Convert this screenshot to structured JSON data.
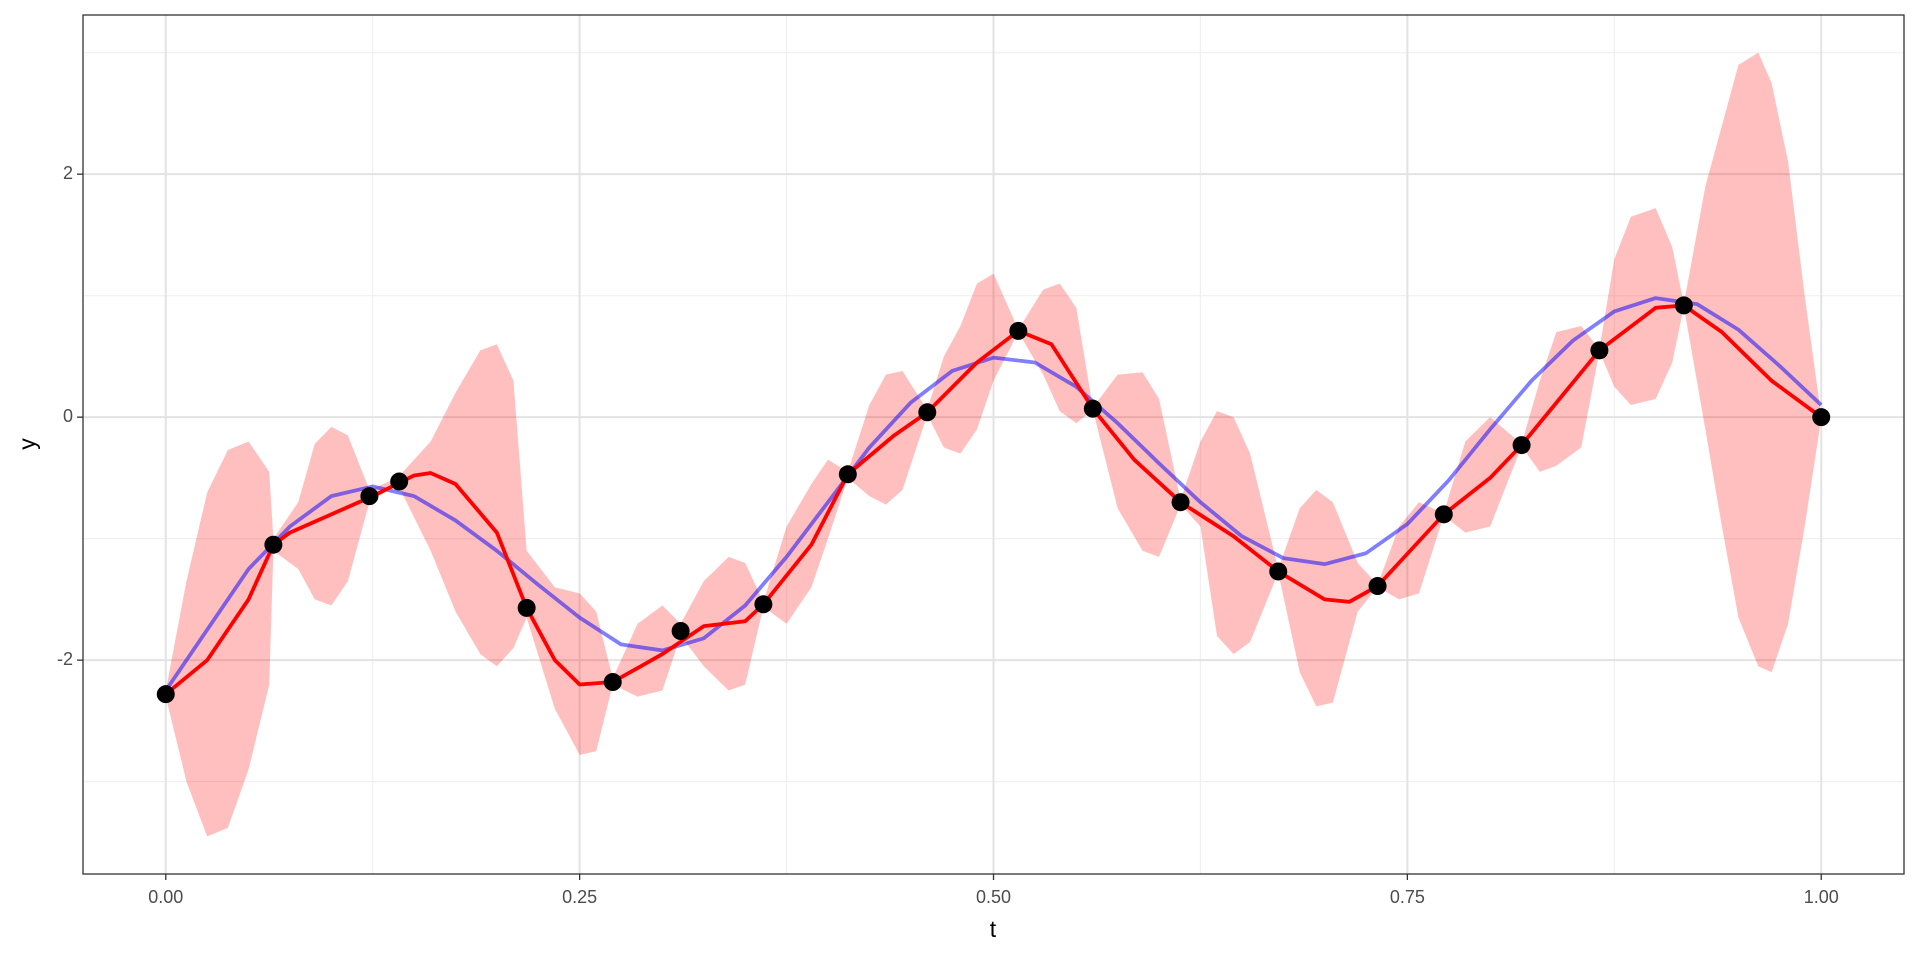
{
  "chart_data": {
    "type": "ribbon-line",
    "xlabel": "t",
    "ylabel": "y",
    "xlim": [
      -0.05,
      1.05
    ],
    "ylim": [
      -3.76,
      3.31
    ],
    "xticks": [
      {
        "value": 0,
        "label": "0.00"
      },
      {
        "value": 0.25,
        "label": "0.25"
      },
      {
        "value": 0.5,
        "label": "0.50"
      },
      {
        "value": 0.75,
        "label": "0.75"
      },
      {
        "value": 1,
        "label": "1.00"
      }
    ],
    "yticks": [
      -2,
      0,
      2
    ],
    "xminor": [
      0.125,
      0.375,
      0.625,
      0.875
    ],
    "yminor": [
      -3,
      -1,
      1,
      3
    ],
    "grid": true,
    "band": {
      "color": "#ff0000",
      "opacity": 0.25,
      "x": [
        0,
        0.0125,
        0.025,
        0.0375,
        0.05,
        0.0625,
        0.065,
        0.08,
        0.09,
        0.1,
        0.11,
        0.123,
        0.14,
        0.16,
        0.175,
        0.19,
        0.2,
        0.21,
        0.218,
        0.235,
        0.25,
        0.26,
        0.27,
        0.285,
        0.3,
        0.311,
        0.325,
        0.34,
        0.35,
        0.361,
        0.375,
        0.39,
        0.4,
        0.412,
        0.425,
        0.435,
        0.445,
        0.46,
        0.47,
        0.48,
        0.49,
        0.5,
        0.515,
        0.53,
        0.54,
        0.55,
        0.56,
        0.575,
        0.59,
        0.6,
        0.613,
        0.625,
        0.635,
        0.645,
        0.655,
        0.672,
        0.685,
        0.695,
        0.705,
        0.72,
        0.732,
        0.745,
        0.757,
        0.772,
        0.785,
        0.8,
        0.819,
        0.83,
        0.84,
        0.855,
        0.866,
        0.875,
        0.885,
        0.9,
        0.91,
        0.917,
        0.93,
        0.94,
        0.95,
        0.962,
        0.97,
        0.98,
        0.99,
        1
      ],
      "lower": [
        -2.3,
        -3.0,
        -3.45,
        -3.38,
        -2.9,
        -2.2,
        -1.1,
        -1.25,
        -1.5,
        -1.55,
        -1.35,
        -0.7,
        -0.55,
        -1.1,
        -1.6,
        -1.95,
        -2.05,
        -1.9,
        -1.65,
        -2.4,
        -2.78,
        -2.75,
        -2.2,
        -2.3,
        -2.25,
        -1.8,
        -2.05,
        -2.25,
        -2.2,
        -1.56,
        -1.7,
        -1.4,
        -1.0,
        -0.5,
        -0.65,
        -0.72,
        -0.6,
        0.02,
        -0.25,
        -0.3,
        -0.1,
        0.3,
        0.7,
        0.35,
        0.05,
        -0.05,
        0.06,
        -0.75,
        -1.1,
        -1.15,
        -0.72,
        -0.9,
        -1.8,
        -1.95,
        -1.85,
        -1.28,
        -2.1,
        -2.38,
        -2.35,
        -1.6,
        -1.4,
        -1.5,
        -1.45,
        -0.81,
        -0.95,
        -0.9,
        -0.24,
        -0.45,
        -0.4,
        -0.25,
        0.54,
        0.25,
        0.1,
        0.15,
        0.45,
        0.91,
        -0.1,
        -0.9,
        -1.65,
        -2.05,
        -2.1,
        -1.7,
        -0.9,
        -0.01
      ],
      "upper": [
        -2.25,
        -1.35,
        -0.62,
        -0.27,
        -0.2,
        -0.45,
        -1.0,
        -0.7,
        -0.22,
        -0.08,
        -0.15,
        -0.6,
        -0.5,
        -0.2,
        0.2,
        0.55,
        0.6,
        0.3,
        -1.1,
        -1.4,
        -1.45,
        -1.6,
        -2.15,
        -1.7,
        -1.55,
        -1.7,
        -1.35,
        -1.15,
        -1.2,
        -1.52,
        -0.9,
        -0.55,
        -0.35,
        -0.45,
        0.1,
        0.35,
        0.38,
        0.06,
        0.5,
        0.75,
        1.1,
        1.18,
        0.72,
        1.05,
        1.1,
        0.9,
        0.08,
        0.35,
        0.37,
        0.15,
        -0.68,
        -0.2,
        0.05,
        0.0,
        -0.3,
        -1.25,
        -0.75,
        -0.6,
        -0.7,
        -1.2,
        -1.38,
        -0.9,
        -0.7,
        -0.79,
        -0.2,
        0.0,
        -0.22,
        0.3,
        0.7,
        0.75,
        0.56,
        1.3,
        1.65,
        1.72,
        1.4,
        0.93,
        1.9,
        2.4,
        2.9,
        3.0,
        2.75,
        2.1,
        1.0,
        0.01
      ]
    },
    "series": [
      {
        "color": "#0000ff",
        "opacity": 0.5,
        "x": [
          0,
          0.025,
          0.05,
          0.075,
          0.1,
          0.125,
          0.15,
          0.175,
          0.2,
          0.225,
          0.25,
          0.275,
          0.3,
          0.325,
          0.35,
          0.375,
          0.4,
          0.425,
          0.45,
          0.475,
          0.5,
          0.525,
          0.55,
          0.575,
          0.6,
          0.625,
          0.65,
          0.675,
          0.7,
          0.725,
          0.75,
          0.775,
          0.8,
          0.825,
          0.85,
          0.875,
          0.9,
          0.925,
          0.95,
          0.975,
          1
        ],
        "values": [
          -2.25,
          -1.75,
          -1.25,
          -0.9,
          -0.65,
          -0.57,
          -0.65,
          -0.85,
          -1.1,
          -1.38,
          -1.65,
          -1.87,
          -1.92,
          -1.82,
          -1.55,
          -1.15,
          -0.7,
          -0.25,
          0.12,
          0.38,
          0.49,
          0.45,
          0.25,
          -0.05,
          -0.38,
          -0.7,
          -0.98,
          -1.16,
          -1.21,
          -1.12,
          -0.88,
          -0.52,
          -0.1,
          0.3,
          0.63,
          0.87,
          0.98,
          0.93,
          0.72,
          0.42,
          0.1
        ]
      },
      {
        "color": "#ff0000",
        "opacity": 1,
        "x": [
          0,
          0.025,
          0.05,
          0.065,
          0.075,
          0.1,
          0.125,
          0.15,
          0.16,
          0.175,
          0.2,
          0.218,
          0.235,
          0.25,
          0.27,
          0.3,
          0.325,
          0.35,
          0.361,
          0.39,
          0.412,
          0.44,
          0.46,
          0.49,
          0.515,
          0.535,
          0.56,
          0.585,
          0.613,
          0.645,
          0.672,
          0.7,
          0.715,
          0.732,
          0.772,
          0.8,
          0.819,
          0.866,
          0.9,
          0.917,
          0.94,
          0.97,
          1
        ],
        "values": [
          -2.28,
          -2.0,
          -1.5,
          -1.05,
          -0.95,
          -0.8,
          -0.65,
          -0.48,
          -0.46,
          -0.55,
          -0.95,
          -1.57,
          -2.0,
          -2.2,
          -2.18,
          -1.95,
          -1.72,
          -1.68,
          -1.54,
          -1.05,
          -0.47,
          -0.15,
          0.04,
          0.45,
          0.71,
          0.6,
          0.07,
          -0.35,
          -0.7,
          -0.98,
          -1.27,
          -1.5,
          -1.52,
          -1.39,
          -0.8,
          -0.5,
          -0.23,
          0.55,
          0.9,
          0.92,
          0.7,
          0.3,
          0.0
        ]
      }
    ],
    "points": {
      "color": "#000000",
      "x": [
        0,
        0.065,
        0.123,
        0.141,
        0.218,
        0.27,
        0.311,
        0.361,
        0.412,
        0.46,
        0.515,
        0.56,
        0.613,
        0.672,
        0.732,
        0.772,
        0.819,
        0.866,
        0.917,
        1
      ],
      "values": [
        -2.28,
        -1.05,
        -0.65,
        -0.53,
        -1.57,
        -2.18,
        -1.76,
        -1.54,
        -0.47,
        0.04,
        0.71,
        0.07,
        -0.7,
        -1.27,
        -1.39,
        -0.8,
        -0.23,
        0.55,
        0.92,
        0.0
      ]
    }
  }
}
